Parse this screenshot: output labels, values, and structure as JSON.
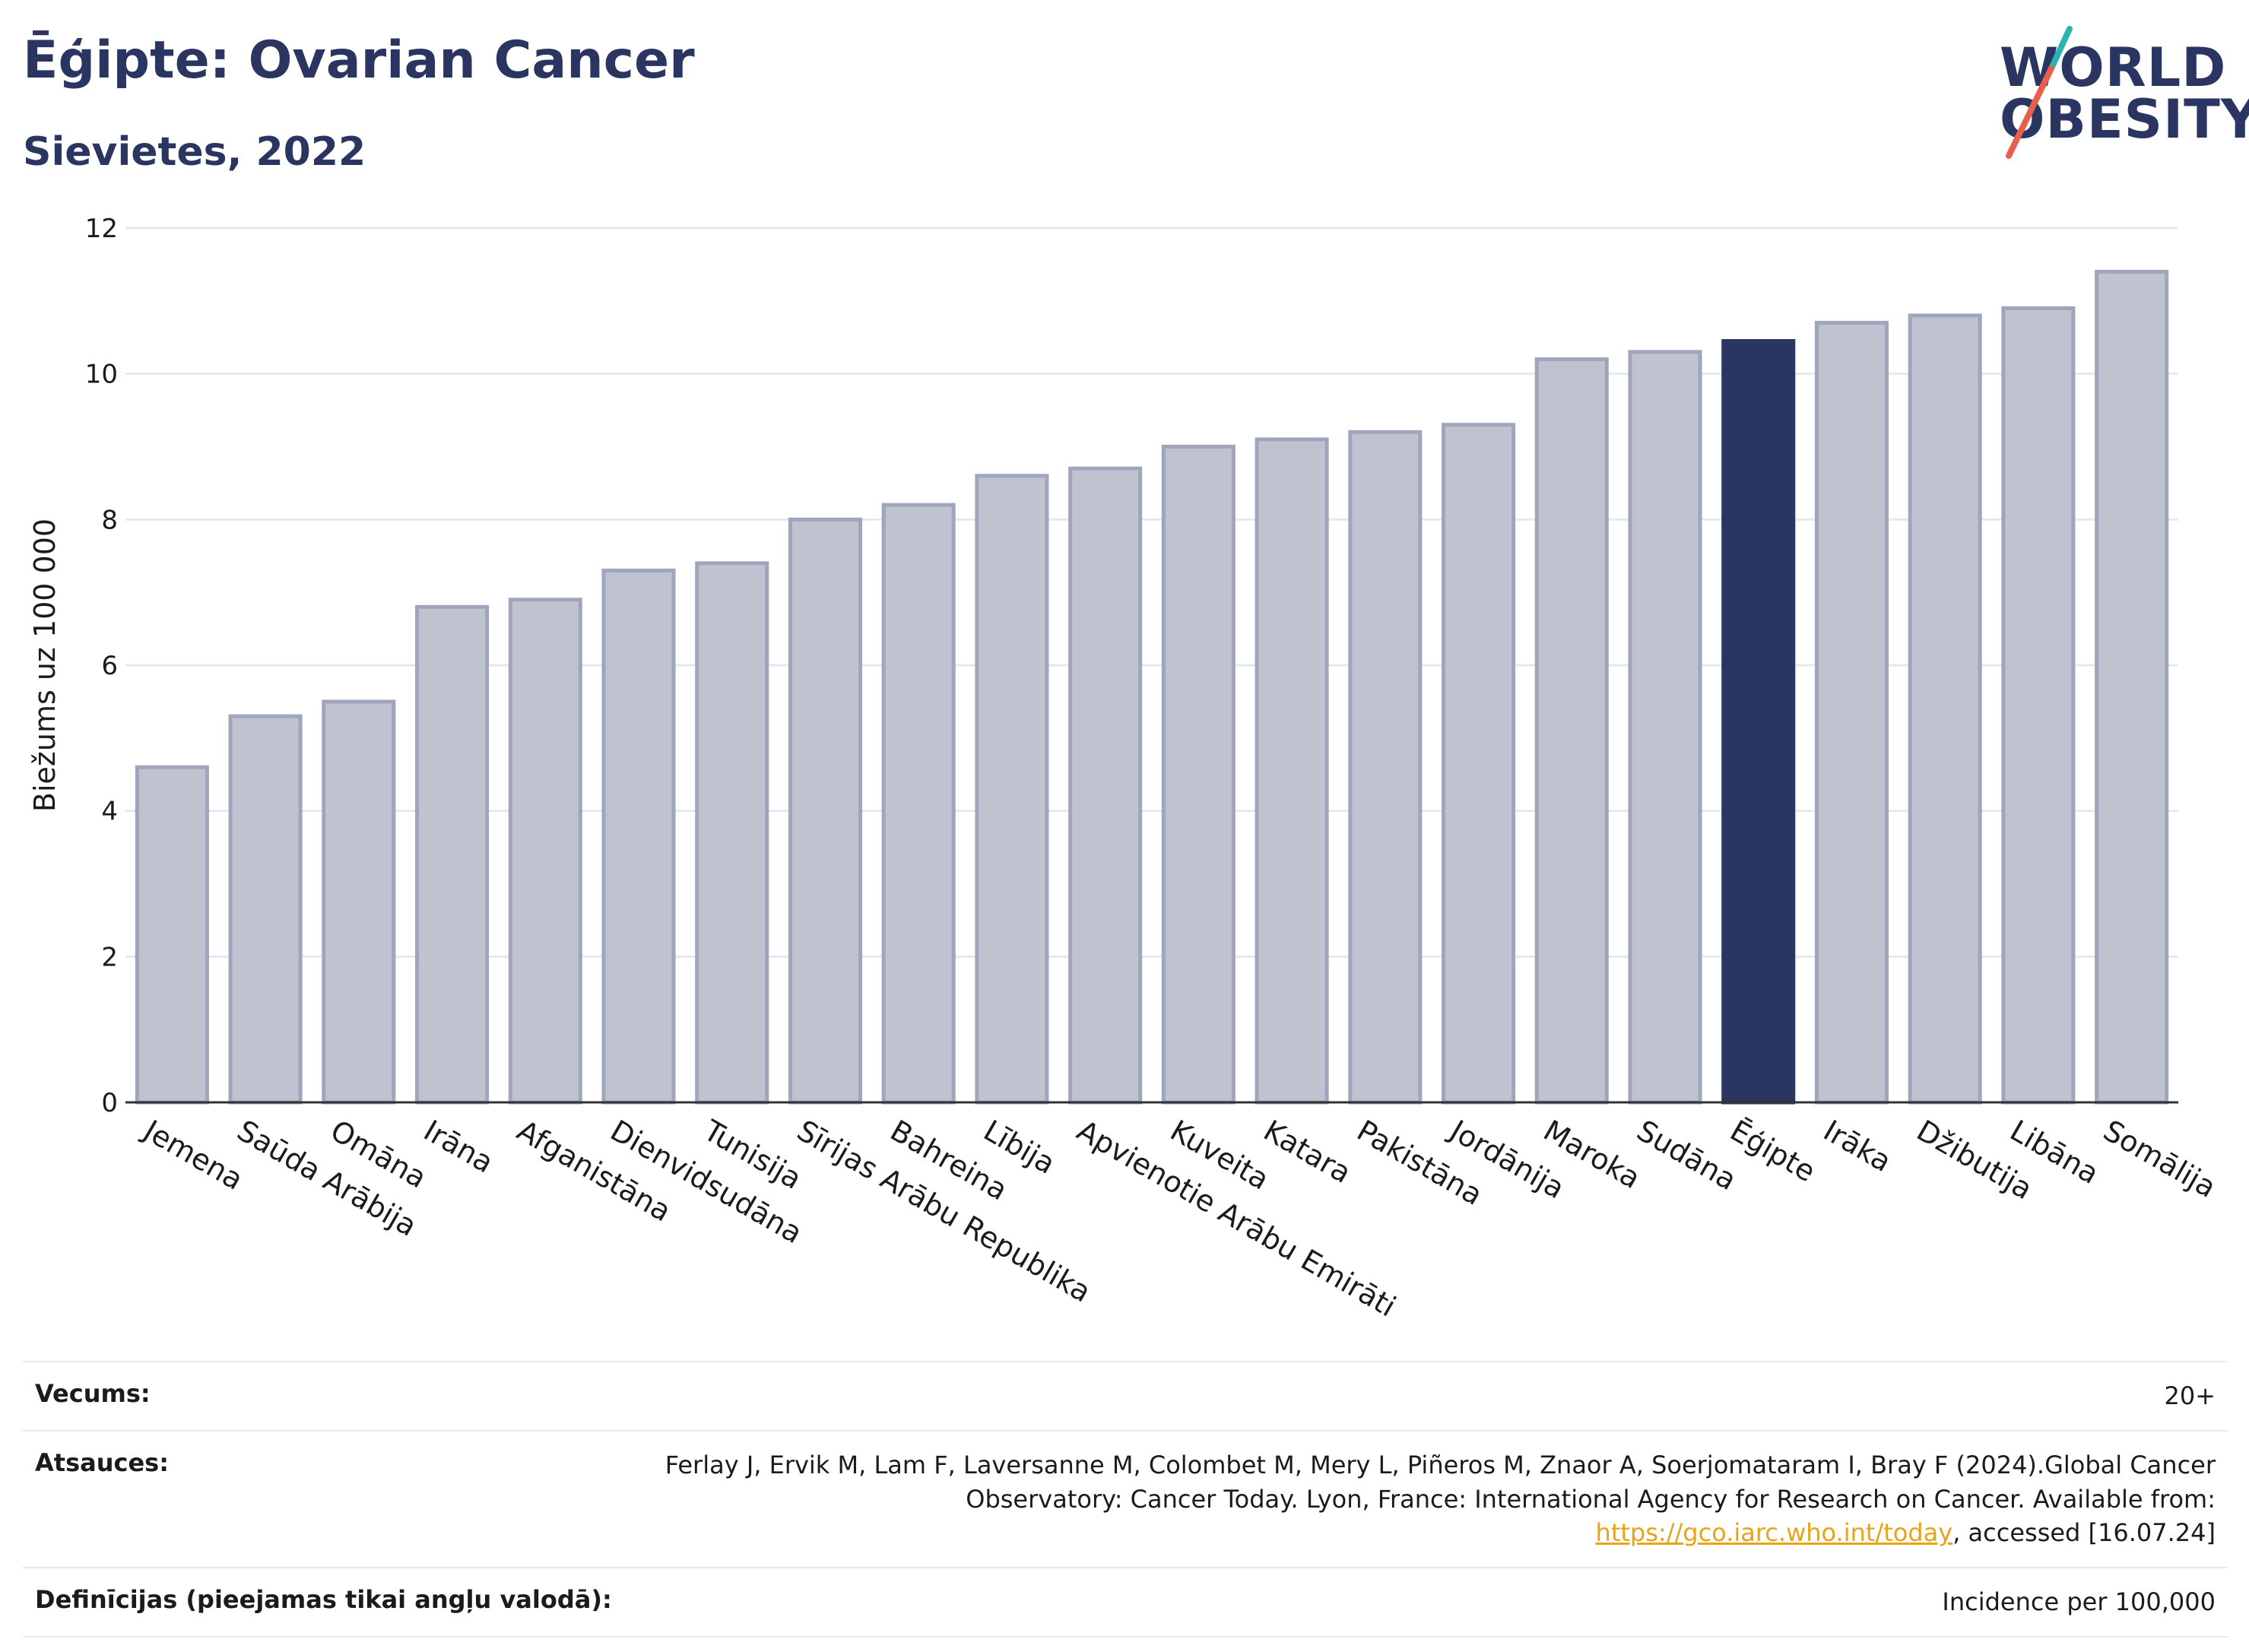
{
  "header": {
    "title": "Ēģipte: Ovarian Cancer",
    "subtitle": "Sievietes, 2022"
  },
  "logo": {
    "line1": "WORLD",
    "line2": "OBESITY",
    "colors": {
      "text": "#2a3561",
      "accent_teal": "#2ab3b1",
      "accent_red": "#e8604c"
    }
  },
  "chart_data": {
    "type": "bar",
    "ylabel": "Biežums uz 100 000",
    "ylim": [
      0,
      12
    ],
    "yticks": [
      0,
      2,
      4,
      6,
      8,
      10,
      12
    ],
    "grid": true,
    "categories": [
      "Jemena",
      "Saūda Arābija",
      "Omāna",
      "Irāna",
      "Afganistāna",
      "Dienvidsudāna",
      "Tunisija",
      "Sīrijas Arābu Republika",
      "Bahreina",
      "Lībija",
      "Apvienotie Arābu Emirāti",
      "Kuveita",
      "Katara",
      "Pakistāna",
      "Jordānija",
      "Maroka",
      "Sudāna",
      "Ēģipte",
      "Irāka",
      "Džibutija",
      "Libāna",
      "Somālija"
    ],
    "values": [
      4.6,
      5.3,
      5.5,
      6.8,
      6.9,
      7.3,
      7.4,
      8.0,
      8.2,
      8.6,
      8.7,
      9.0,
      9.1,
      9.2,
      9.3,
      10.2,
      10.3,
      10.45,
      10.7,
      10.8,
      10.9,
      11.4
    ],
    "highlight": "Ēģipte",
    "colors": {
      "bar": "#bfc2cf",
      "bar_border": "#9fa5bd",
      "highlight": "#2a3561",
      "grid": "#e6e8ef",
      "axis": "#333333"
    }
  },
  "footer": {
    "age_label": "Vecums:",
    "age_value": "20+",
    "refs_label": "Atsauces:",
    "refs_text_1": "Ferlay J, Ervik M, Lam F, Laversanne M, Colombet M, Mery L, Piñeros M, Znaor A, Soerjomataram I, Bray F (2024).Global Cancer Observatory: Cancer Today. Lyon, France: International Agency for Research on Cancer. Available from: ",
    "refs_link": "https://gco.iarc.who.int/today",
    "refs_text_2": ", accessed [16.07.24]",
    "def_label": "Definīcijas (pieejamas tikai angļu valodā):",
    "def_value": "Incidence per 100,000"
  }
}
